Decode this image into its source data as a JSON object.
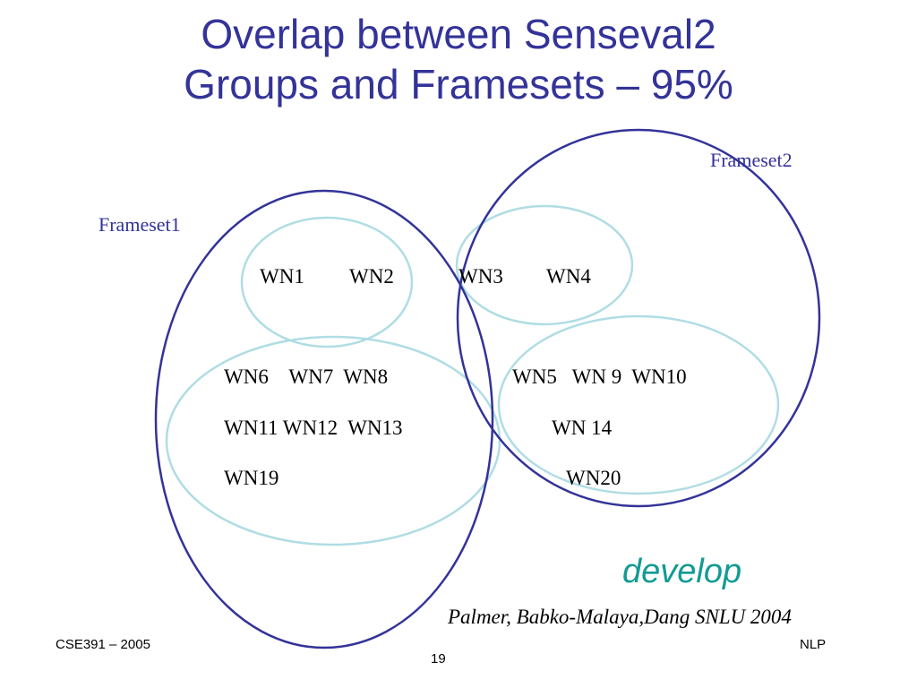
{
  "title": {
    "line1": "Overlap between Senseval2",
    "line2": "Groups and Framesets – 95%"
  },
  "framesets": {
    "frameset1_label": "Frameset1",
    "frameset2_label": "Frameset2"
  },
  "groups": {
    "top_left": [
      "WN1",
      "WN2"
    ],
    "top_right": [
      "WN3",
      "WN4"
    ],
    "bottom_left_rows": [
      "WN6    WN7  WN8",
      "WN11 WN12  WN13",
      "WN19"
    ],
    "bottom_right_rows": [
      "WN5   WN 9  WN10",
      "WN 14",
      "WN20"
    ]
  },
  "verb": "develop",
  "citation": "Palmer, Babko-Malaya,Dang SNLU 2004",
  "footer": {
    "left": "CSE391 – 2005",
    "center": "19",
    "right": "NLP"
  },
  "colors": {
    "title": "#333399",
    "frameset_outline": "#333399",
    "group_outline": "#b0dde4",
    "verb": "#129b94"
  }
}
